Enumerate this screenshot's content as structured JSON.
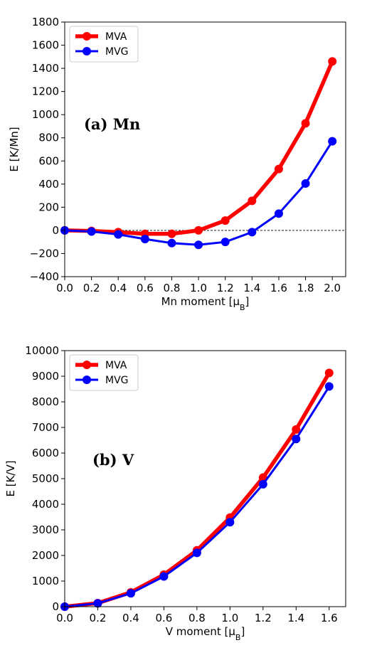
{
  "chart_data": [
    {
      "type": "line",
      "annotation": "(a) Mn",
      "xlabel": "Mn moment [μB]",
      "ylabel": "E [K/Mn]",
      "xlim": [
        0.0,
        2.1
      ],
      "ylim": [
        -400,
        1800
      ],
      "xticks": [
        0.0,
        0.2,
        0.4,
        0.6,
        0.8,
        1.0,
        1.2,
        1.4,
        1.6,
        1.8,
        2.0
      ],
      "yticks": [
        -400,
        -200,
        0,
        200,
        400,
        600,
        800,
        1000,
        1200,
        1400,
        1600,
        1800
      ],
      "xtick_labels": [
        "0.0",
        "0.2",
        "0.4",
        "0.6",
        "0.8",
        "1.0",
        "1.2",
        "1.4",
        "1.6",
        "1.8",
        "2.0"
      ],
      "ytick_labels": [
        "−400",
        "−200",
        "0",
        "200",
        "400",
        "600",
        "800",
        "1000",
        "1200",
        "1400",
        "1600",
        "1800"
      ],
      "zero_line": true,
      "legend_position": "top-left",
      "x": [
        0.0,
        0.2,
        0.4,
        0.6,
        0.8,
        1.0,
        1.2,
        1.4,
        1.6,
        1.8,
        2.0
      ],
      "series": [
        {
          "name": "MVA",
          "color": "#ff0000",
          "values": [
            0,
            -5,
            -15,
            -30,
            -30,
            0,
            85,
            255,
            530,
            925,
            1460
          ]
        },
        {
          "name": "MVG",
          "color": "#0000ff",
          "values": [
            0,
            -10,
            -35,
            -75,
            -110,
            -125,
            -100,
            -15,
            145,
            405,
            770
          ]
        }
      ]
    },
    {
      "type": "line",
      "annotation": "(b) V",
      "xlabel": "V moment [μB]",
      "ylabel": "E [K/V]",
      "xlim": [
        0.0,
        1.7
      ],
      "ylim": [
        0,
        10000
      ],
      "xticks": [
        0.0,
        0.2,
        0.4,
        0.6,
        0.8,
        1.0,
        1.2,
        1.4,
        1.6
      ],
      "yticks": [
        0,
        1000,
        2000,
        3000,
        4000,
        5000,
        6000,
        7000,
        8000,
        9000,
        10000
      ],
      "xtick_labels": [
        "0.0",
        "0.2",
        "0.4",
        "0.6",
        "0.8",
        "1.0",
        "1.2",
        "1.4",
        "1.6"
      ],
      "ytick_labels": [
        "0",
        "1000",
        "2000",
        "3000",
        "4000",
        "5000",
        "6000",
        "7000",
        "8000",
        "9000",
        "10000"
      ],
      "zero_line": false,
      "legend_position": "top-left",
      "x": [
        0.0,
        0.2,
        0.4,
        0.6,
        0.8,
        1.0,
        1.2,
        1.4,
        1.6
      ],
      "series": [
        {
          "name": "MVA",
          "color": "#ff0000",
          "values": [
            0,
            140,
            560,
            1250,
            2200,
            3480,
            5040,
            6920,
            9130
          ]
        },
        {
          "name": "MVG",
          "color": "#0000ff",
          "values": [
            0,
            130,
            520,
            1180,
            2100,
            3300,
            4780,
            6550,
            8600
          ]
        }
      ]
    }
  ]
}
